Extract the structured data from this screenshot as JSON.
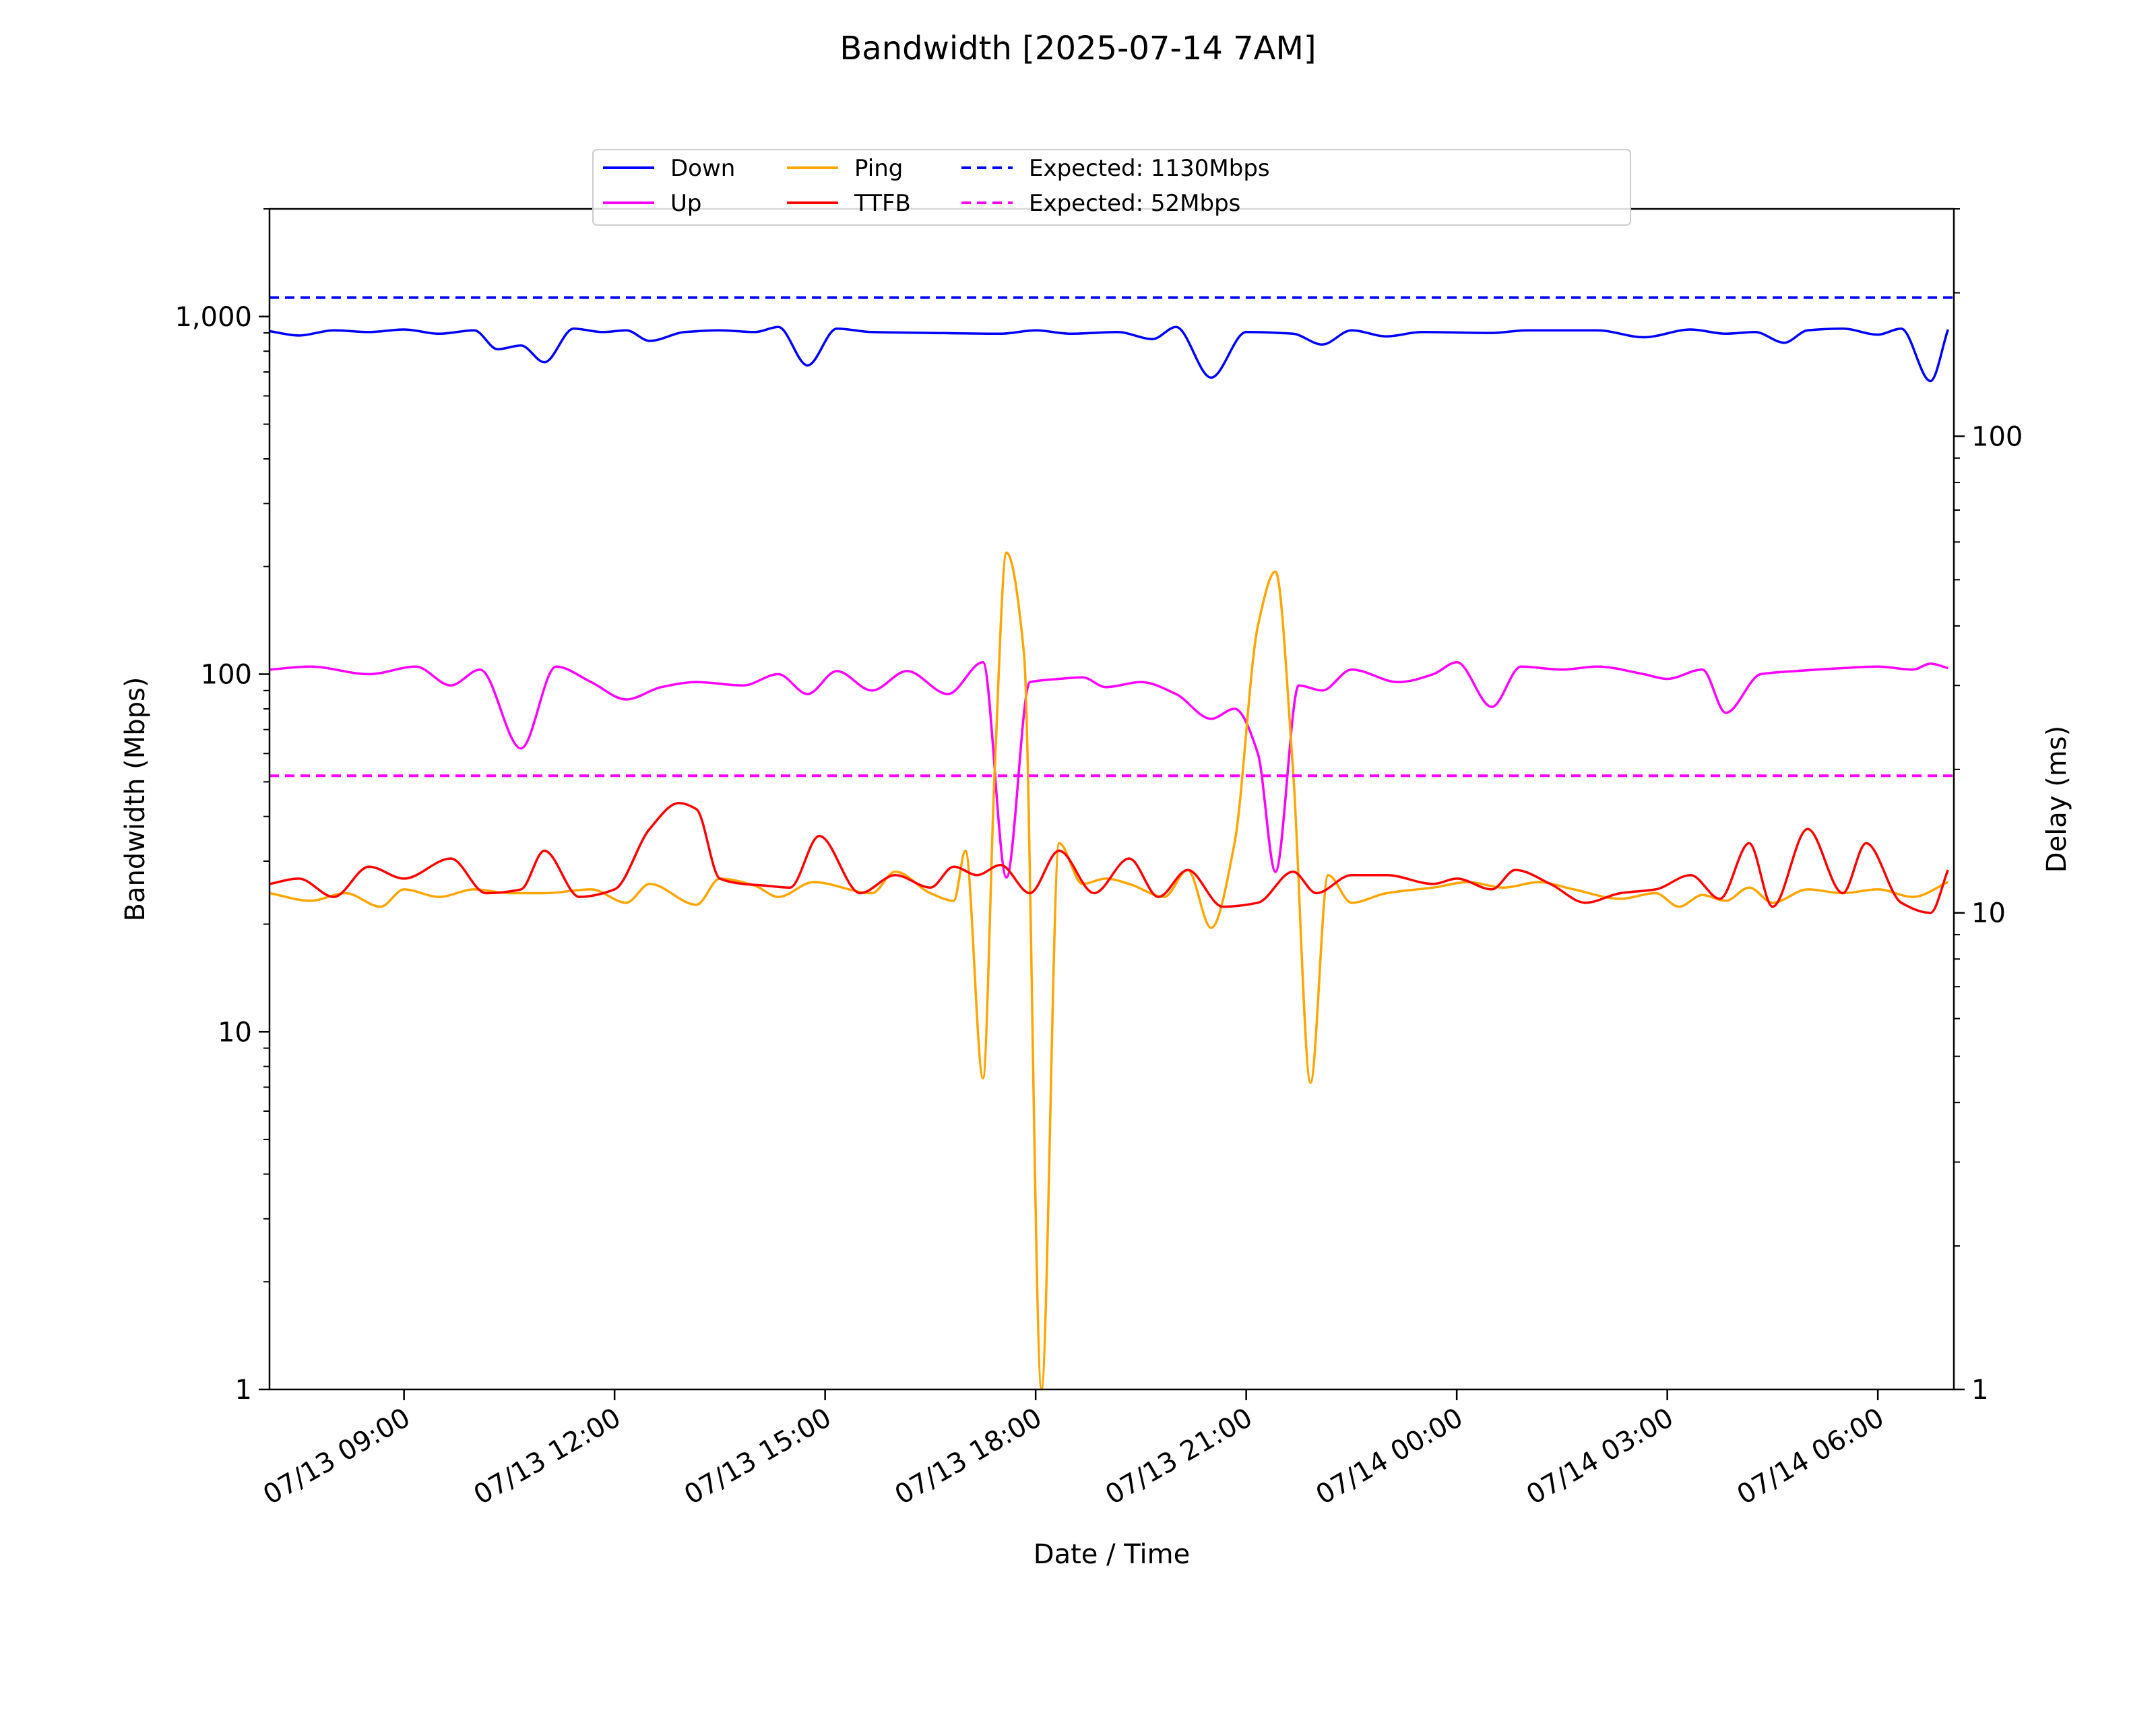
{
  "chart_data": {
    "type": "line",
    "title": "Bandwidth [2025-07-14 7AM]",
    "xlabel": "Date / Time",
    "ylabel_left": "Bandwidth (Mbps)",
    "ylabel_right": "Delay (ms)",
    "x_unit": "datetime",
    "xlim": [
      "2025-07-13 07:05",
      "2025-07-14 07:05"
    ],
    "x_ticks": [
      {
        "t": "2025-07-13 09:00",
        "label": "07/13 09:00"
      },
      {
        "t": "2025-07-13 12:00",
        "label": "07/13 12:00"
      },
      {
        "t": "2025-07-13 15:00",
        "label": "07/13 15:00"
      },
      {
        "t": "2025-07-13 18:00",
        "label": "07/13 18:00"
      },
      {
        "t": "2025-07-13 21:00",
        "label": "07/13 21:00"
      },
      {
        "t": "2025-07-14 00:00",
        "label": "07/14 00:00"
      },
      {
        "t": "2025-07-14 03:00",
        "label": "07/14 03:00"
      },
      {
        "t": "2025-07-14 06:00",
        "label": "07/14 06:00"
      }
    ],
    "y_left": {
      "scale": "log",
      "ylim": [
        1,
        2000
      ],
      "ticks": [
        1,
        10,
        100,
        1000
      ],
      "tick_labels": [
        "1",
        "10",
        "100",
        "1,000"
      ]
    },
    "y_right": {
      "scale": "log",
      "ylim": [
        1,
        300
      ],
      "ticks": [
        1,
        10,
        100
      ],
      "tick_labels": [
        "1",
        "10",
        "100"
      ]
    },
    "legend": {
      "placement": "upper-center",
      "columns": 4
    },
    "grid": false,
    "series": [
      {
        "name": "Down",
        "axis": "left",
        "color": "#0000ff",
        "style": "solid",
        "points": [
          [
            "2025-07-13 07:05",
            910
          ],
          [
            "2025-07-13 07:30",
            885
          ],
          [
            "2025-07-13 08:00",
            915
          ],
          [
            "2025-07-13 08:30",
            905
          ],
          [
            "2025-07-13 09:00",
            920
          ],
          [
            "2025-07-13 09:30",
            895
          ],
          [
            "2025-07-13 10:00",
            915
          ],
          [
            "2025-07-13 10:20",
            810
          ],
          [
            "2025-07-13 10:40",
            830
          ],
          [
            "2025-07-13 11:00",
            745
          ],
          [
            "2025-07-13 11:25",
            925
          ],
          [
            "2025-07-13 11:50",
            905
          ],
          [
            "2025-07-13 12:10",
            915
          ],
          [
            "2025-07-13 12:30",
            855
          ],
          [
            "2025-07-13 13:00",
            905
          ],
          [
            "2025-07-13 13:30",
            915
          ],
          [
            "2025-07-13 14:00",
            905
          ],
          [
            "2025-07-13 14:20",
            935
          ],
          [
            "2025-07-13 14:45",
            730
          ],
          [
            "2025-07-13 15:10",
            925
          ],
          [
            "2025-07-13 15:40",
            905
          ],
          [
            "2025-07-13 16:30",
            900
          ],
          [
            "2025-07-13 17:30",
            895
          ],
          [
            "2025-07-13 18:00",
            915
          ],
          [
            "2025-07-13 18:30",
            895
          ],
          [
            "2025-07-13 19:10",
            905
          ],
          [
            "2025-07-13 19:40",
            865
          ],
          [
            "2025-07-13 20:00",
            935
          ],
          [
            "2025-07-13 20:30",
            675
          ],
          [
            "2025-07-13 21:00",
            905
          ],
          [
            "2025-07-13 21:40",
            895
          ],
          [
            "2025-07-13 22:05",
            835
          ],
          [
            "2025-07-13 22:30",
            915
          ],
          [
            "2025-07-13 23:00",
            880
          ],
          [
            "2025-07-13 23:30",
            905
          ],
          [
            "2025-07-14 00:30",
            900
          ],
          [
            "2025-07-14 01:00",
            915
          ],
          [
            "2025-07-14 02:00",
            915
          ],
          [
            "2025-07-14 02:40",
            875
          ],
          [
            "2025-07-14 03:20",
            920
          ],
          [
            "2025-07-14 03:50",
            895
          ],
          [
            "2025-07-14 04:15",
            905
          ],
          [
            "2025-07-14 04:40",
            845
          ],
          [
            "2025-07-14 05:00",
            915
          ],
          [
            "2025-07-14 05:30",
            925
          ],
          [
            "2025-07-14 06:00",
            890
          ],
          [
            "2025-07-14 06:20",
            925
          ],
          [
            "2025-07-14 06:45",
            660
          ],
          [
            "2025-07-14 07:00",
            920
          ]
        ]
      },
      {
        "name": "Up",
        "axis": "left",
        "color": "#ff00ff",
        "style": "solid",
        "points": [
          [
            "2025-07-13 07:05",
            103
          ],
          [
            "2025-07-13 07:40",
            105
          ],
          [
            "2025-07-13 08:30",
            100
          ],
          [
            "2025-07-13 09:10",
            105
          ],
          [
            "2025-07-13 09:40",
            93
          ],
          [
            "2025-07-13 10:05",
            103
          ],
          [
            "2025-07-13 10:40",
            62
          ],
          [
            "2025-07-13 11:10",
            105
          ],
          [
            "2025-07-13 11:40",
            95
          ],
          [
            "2025-07-13 12:10",
            85
          ],
          [
            "2025-07-13 12:40",
            92
          ],
          [
            "2025-07-13 13:10",
            95
          ],
          [
            "2025-07-13 13:50",
            93
          ],
          [
            "2025-07-13 14:20",
            100
          ],
          [
            "2025-07-13 14:45",
            88
          ],
          [
            "2025-07-13 15:10",
            102
          ],
          [
            "2025-07-13 15:40",
            90
          ],
          [
            "2025-07-13 16:10",
            102
          ],
          [
            "2025-07-13 16:45",
            88
          ],
          [
            "2025-07-13 17:15",
            108
          ],
          [
            "2025-07-13 17:35",
            27
          ],
          [
            "2025-07-13 17:55",
            95
          ],
          [
            "2025-07-13 18:20",
            97
          ],
          [
            "2025-07-13 18:40",
            98
          ],
          [
            "2025-07-13 19:00",
            92
          ],
          [
            "2025-07-13 19:30",
            95
          ],
          [
            "2025-07-13 20:00",
            88
          ],
          [
            "2025-07-13 20:30",
            75
          ],
          [
            "2025-07-13 20:50",
            80
          ],
          [
            "2025-07-13 21:10",
            60
          ],
          [
            "2025-07-13 21:25",
            28
          ],
          [
            "2025-07-13 21:45",
            93
          ],
          [
            "2025-07-13 22:05",
            90
          ],
          [
            "2025-07-13 22:30",
            103
          ],
          [
            "2025-07-13 23:10",
            95
          ],
          [
            "2025-07-13 23:40",
            100
          ],
          [
            "2025-07-14 00:00",
            108
          ],
          [
            "2025-07-14 00:30",
            81
          ],
          [
            "2025-07-14 00:55",
            105
          ],
          [
            "2025-07-14 01:30",
            103
          ],
          [
            "2025-07-14 02:00",
            105
          ],
          [
            "2025-07-14 02:40",
            100
          ],
          [
            "2025-07-14 03:00",
            97
          ],
          [
            "2025-07-14 03:30",
            103
          ],
          [
            "2025-07-14 03:50",
            78
          ],
          [
            "2025-07-14 04:20",
            100
          ],
          [
            "2025-07-14 04:50",
            102
          ],
          [
            "2025-07-14 05:30",
            104
          ],
          [
            "2025-07-14 06:00",
            105
          ],
          [
            "2025-07-14 06:30",
            103
          ],
          [
            "2025-07-14 06:45",
            107
          ],
          [
            "2025-07-14 07:00",
            104
          ]
        ]
      },
      {
        "name": "Ping",
        "axis": "right",
        "color": "#ffa500",
        "style": "solid",
        "points": [
          [
            "2025-07-13 07:05",
            11.0
          ],
          [
            "2025-07-13 07:40",
            10.6
          ],
          [
            "2025-07-13 08:10",
            11.0
          ],
          [
            "2025-07-13 08:40",
            10.3
          ],
          [
            "2025-07-13 09:00",
            11.2
          ],
          [
            "2025-07-13 09:30",
            10.8
          ],
          [
            "2025-07-13 10:00",
            11.2
          ],
          [
            "2025-07-13 10:30",
            11.0
          ],
          [
            "2025-07-13 11:00",
            11.0
          ],
          [
            "2025-07-13 11:40",
            11.2
          ],
          [
            "2025-07-13 12:10",
            10.5
          ],
          [
            "2025-07-13 12:30",
            11.5
          ],
          [
            "2025-07-13 13:10",
            10.4
          ],
          [
            "2025-07-13 13:30",
            11.8
          ],
          [
            "2025-07-13 14:00",
            11.4
          ],
          [
            "2025-07-13 14:20",
            10.8
          ],
          [
            "2025-07-13 14:50",
            11.6
          ],
          [
            "2025-07-13 15:40",
            11.0
          ],
          [
            "2025-07-13 16:00",
            12.2
          ],
          [
            "2025-07-13 16:30",
            11.0
          ],
          [
            "2025-07-13 16:50",
            10.6
          ],
          [
            "2025-07-13 17:00",
            13.5
          ],
          [
            "2025-07-13 17:15",
            4.5
          ],
          [
            "2025-07-13 17:25",
            20.0
          ],
          [
            "2025-07-13 17:35",
            57.0
          ],
          [
            "2025-07-13 17:50",
            35.0
          ],
          [
            "2025-07-13 18:05",
            1.0
          ],
          [
            "2025-07-13 18:20",
            14.0
          ],
          [
            "2025-07-13 18:40",
            11.5
          ],
          [
            "2025-07-13 19:00",
            11.8
          ],
          [
            "2025-07-13 19:20",
            11.5
          ],
          [
            "2025-07-13 19:50",
            10.8
          ],
          [
            "2025-07-13 20:10",
            12.3
          ],
          [
            "2025-07-13 20:30",
            9.3
          ],
          [
            "2025-07-13 20:50",
            14.0
          ],
          [
            "2025-07-13 21:10",
            40.0
          ],
          [
            "2025-07-13 21:25",
            52.0
          ],
          [
            "2025-07-13 21:40",
            20.0
          ],
          [
            "2025-07-13 21:55",
            4.4
          ],
          [
            "2025-07-13 22:10",
            12.0
          ],
          [
            "2025-07-13 22:30",
            10.5
          ],
          [
            "2025-07-13 23:00",
            11.0
          ],
          [
            "2025-07-13 23:40",
            11.3
          ],
          [
            "2025-07-14 00:10",
            11.6
          ],
          [
            "2025-07-14 00:40",
            11.3
          ],
          [
            "2025-07-14 01:10",
            11.6
          ],
          [
            "2025-07-14 01:40",
            11.2
          ],
          [
            "2025-07-14 02:20",
            10.7
          ],
          [
            "2025-07-14 02:50",
            11.0
          ],
          [
            "2025-07-14 03:10",
            10.3
          ],
          [
            "2025-07-14 03:30",
            10.9
          ],
          [
            "2025-07-14 03:50",
            10.6
          ],
          [
            "2025-07-14 04:10",
            11.3
          ],
          [
            "2025-07-14 04:30",
            10.5
          ],
          [
            "2025-07-14 05:00",
            11.2
          ],
          [
            "2025-07-14 05:30",
            11.0
          ],
          [
            "2025-07-14 06:00",
            11.2
          ],
          [
            "2025-07-14 06:30",
            10.8
          ],
          [
            "2025-07-14 07:00",
            11.6
          ]
        ]
      },
      {
        "name": "TTFB",
        "axis": "right",
        "color": "#ff0000",
        "style": "solid",
        "points": [
          [
            "2025-07-13 07:05",
            11.5
          ],
          [
            "2025-07-13 07:30",
            11.8
          ],
          [
            "2025-07-13 08:00",
            10.8
          ],
          [
            "2025-07-13 08:30",
            12.5
          ],
          [
            "2025-07-13 09:00",
            11.8
          ],
          [
            "2025-07-13 09:40",
            13.0
          ],
          [
            "2025-07-13 10:10",
            11.0
          ],
          [
            "2025-07-13 10:40",
            11.2
          ],
          [
            "2025-07-13 11:00",
            13.5
          ],
          [
            "2025-07-13 11:30",
            10.8
          ],
          [
            "2025-07-13 12:00",
            11.2
          ],
          [
            "2025-07-13 12:30",
            15.0
          ],
          [
            "2025-07-13 12:55",
            17.0
          ],
          [
            "2025-07-13 13:10",
            16.5
          ],
          [
            "2025-07-13 13:30",
            11.8
          ],
          [
            "2025-07-13 13:50",
            11.5
          ],
          [
            "2025-07-13 14:10",
            11.4
          ],
          [
            "2025-07-13 14:30",
            11.3
          ],
          [
            "2025-07-13 14:55",
            14.5
          ],
          [
            "2025-07-13 15:30",
            11.0
          ],
          [
            "2025-07-13 16:00",
            12.0
          ],
          [
            "2025-07-13 16:30",
            11.3
          ],
          [
            "2025-07-13 16:50",
            12.5
          ],
          [
            "2025-07-13 17:10",
            12.0
          ],
          [
            "2025-07-13 17:30",
            12.6
          ],
          [
            "2025-07-13 17:55",
            11.0
          ],
          [
            "2025-07-13 18:20",
            13.5
          ],
          [
            "2025-07-13 18:50",
            11.0
          ],
          [
            "2025-07-13 19:20",
            13.0
          ],
          [
            "2025-07-13 19:45",
            10.8
          ],
          [
            "2025-07-13 20:10",
            12.3
          ],
          [
            "2025-07-13 20:40",
            10.3
          ],
          [
            "2025-07-13 21:10",
            10.5
          ],
          [
            "2025-07-13 21:40",
            12.2
          ],
          [
            "2025-07-13 22:00",
            11.0
          ],
          [
            "2025-07-13 22:30",
            12.0
          ],
          [
            "2025-07-13 23:00",
            12.0
          ],
          [
            "2025-07-13 23:40",
            11.5
          ],
          [
            "2025-07-14 00:00",
            11.8
          ],
          [
            "2025-07-14 00:30",
            11.2
          ],
          [
            "2025-07-14 00:50",
            12.3
          ],
          [
            "2025-07-14 01:20",
            11.5
          ],
          [
            "2025-07-14 01:50",
            10.5
          ],
          [
            "2025-07-14 02:20",
            11.0
          ],
          [
            "2025-07-14 02:50",
            11.2
          ],
          [
            "2025-07-14 03:20",
            12.0
          ],
          [
            "2025-07-14 03:45",
            10.7
          ],
          [
            "2025-07-14 04:10",
            14.0
          ],
          [
            "2025-07-14 04:30",
            10.3
          ],
          [
            "2025-07-14 05:00",
            15.0
          ],
          [
            "2025-07-14 05:30",
            11.0
          ],
          [
            "2025-07-14 05:50",
            14.0
          ],
          [
            "2025-07-14 06:20",
            10.5
          ],
          [
            "2025-07-14 06:45",
            10.0
          ],
          [
            "2025-07-14 07:00",
            12.3
          ]
        ]
      },
      {
        "name": "Expected: 1130Mbps",
        "axis": "left",
        "color": "#0000ff",
        "style": "dashed",
        "constant": 1130
      },
      {
        "name": "Expected: 52Mbps",
        "axis": "left",
        "color": "#ff00ff",
        "style": "dashed",
        "constant": 52
      }
    ]
  }
}
